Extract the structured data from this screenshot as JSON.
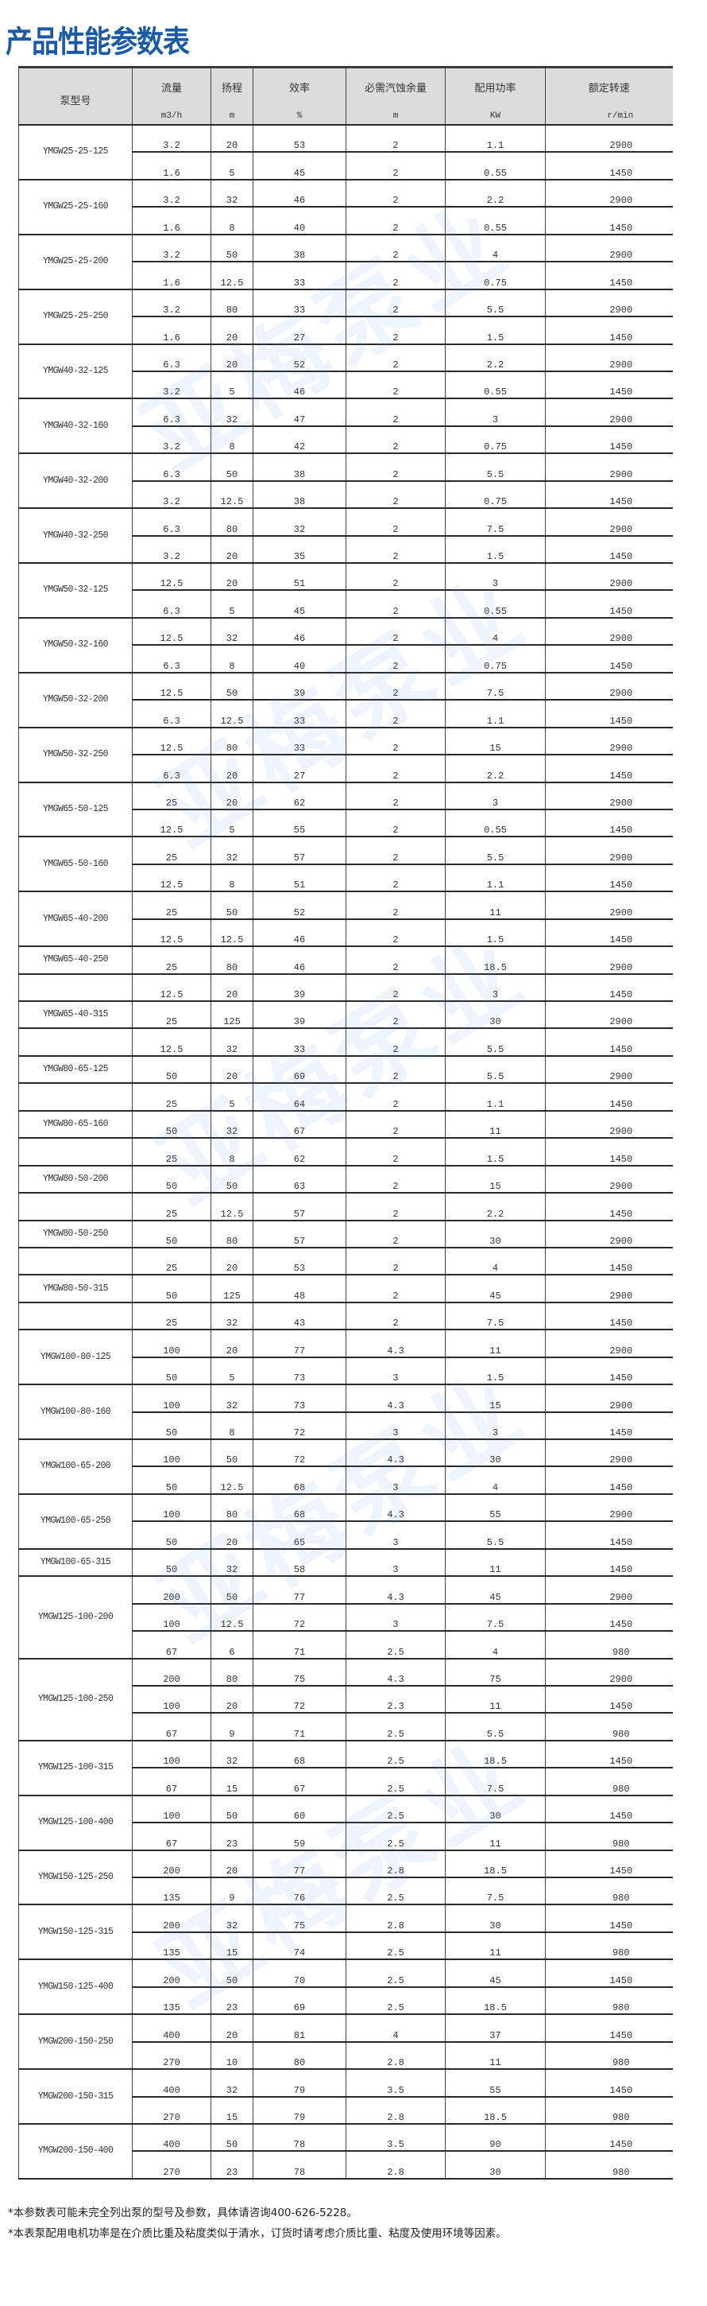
{
  "title": "产品性能参数表",
  "watermark": "亚梅泵业",
  "header": {
    "model": "泵型号",
    "columns": [
      {
        "label": "流量",
        "unit": "m3/h"
      },
      {
        "label": "扬程",
        "unit": "m"
      },
      {
        "label": "效率",
        "unit": "%"
      },
      {
        "label": "必需汽蚀余量",
        "unit": "m"
      },
      {
        "label": "配用功率",
        "unit": "KW"
      },
      {
        "label": "额定转速",
        "unit": "r/min"
      }
    ]
  },
  "groups": [
    {
      "model": "YMGW25-25-125",
      "merged": true,
      "rows": [
        [
          "3.2",
          "20",
          "53",
          "2",
          "1.1",
          "2900"
        ],
        [
          "1.6",
          "5",
          "45",
          "2",
          "0.55",
          "1450"
        ]
      ]
    },
    {
      "model": "YMGW25-25-160",
      "merged": true,
      "rows": [
        [
          "3.2",
          "32",
          "46",
          "2",
          "2.2",
          "2900"
        ],
        [
          "1.6",
          "8",
          "40",
          "2",
          "0.55",
          "1450"
        ]
      ]
    },
    {
      "model": "YMGW25-25-200",
      "merged": true,
      "rows": [
        [
          "3.2",
          "50",
          "38",
          "2",
          "4",
          "2900"
        ],
        [
          "1.6",
          "12.5",
          "33",
          "2",
          "0.75",
          "1450"
        ]
      ]
    },
    {
      "model": "YMGW25-25-250",
      "merged": true,
      "rows": [
        [
          "3.2",
          "80",
          "33",
          "2",
          "5.5",
          "2900"
        ],
        [
          "1.6",
          "20",
          "27",
          "2",
          "1.5",
          "1450"
        ]
      ]
    },
    {
      "model": "YMGW40-32-125",
      "merged": true,
      "rows": [
        [
          "6.3",
          "20",
          "52",
          "2",
          "2.2",
          "2900"
        ],
        [
          "3.2",
          "5",
          "46",
          "2",
          "0.55",
          "1450"
        ]
      ]
    },
    {
      "model": "YMGW40-32-160",
      "merged": true,
      "rows": [
        [
          "6.3",
          "32",
          "47",
          "2",
          "3",
          "2900"
        ],
        [
          "3.2",
          "8",
          "42",
          "2",
          "0.75",
          "1450"
        ]
      ]
    },
    {
      "model": "YMGW40-32-200",
      "merged": true,
      "rows": [
        [
          "6.3",
          "50",
          "38",
          "2",
          "5.5",
          "2900"
        ],
        [
          "3.2",
          "12.5",
          "38",
          "2",
          "0.75",
          "1450"
        ]
      ]
    },
    {
      "model": "YMGW40-32-250",
      "merged": true,
      "rows": [
        [
          "6.3",
          "80",
          "32",
          "2",
          "7.5",
          "2900"
        ],
        [
          "3.2",
          "20",
          "35",
          "2",
          "1.5",
          "1450"
        ]
      ]
    },
    {
      "model": "YMGW50-32-125",
      "merged": true,
      "rows": [
        [
          "12.5",
          "20",
          "51",
          "2",
          "3",
          "2900"
        ],
        [
          "6.3",
          "5",
          "45",
          "2",
          "0.55",
          "1450"
        ]
      ]
    },
    {
      "model": "YMGW50-32-160",
      "merged": true,
      "rows": [
        [
          "12.5",
          "32",
          "46",
          "2",
          "4",
          "2900"
        ],
        [
          "6.3",
          "8",
          "40",
          "2",
          "0.75",
          "1450"
        ]
      ]
    },
    {
      "model": "YMGW50-32-200",
      "merged": true,
      "rows": [
        [
          "12.5",
          "50",
          "39",
          "2",
          "7.5",
          "2900"
        ],
        [
          "6.3",
          "12.5",
          "33",
          "2",
          "1.1",
          "1450"
        ]
      ]
    },
    {
      "model": "YMGW50-32-250",
      "merged": true,
      "rows": [
        [
          "12.5",
          "80",
          "33",
          "2",
          "15",
          "2900"
        ],
        [
          "6.3",
          "20",
          "27",
          "2",
          "2.2",
          "1450"
        ]
      ]
    },
    {
      "model": "YMGW65-50-125",
      "merged": true,
      "rows": [
        [
          "25",
          "20",
          "62",
          "2",
          "3",
          "2900"
        ],
        [
          "12.5",
          "5",
          "55",
          "2",
          "0.55",
          "1450"
        ]
      ]
    },
    {
      "model": "YMGW65-50-160",
      "merged": true,
      "rows": [
        [
          "25",
          "32",
          "57",
          "2",
          "5.5",
          "2900"
        ],
        [
          "12.5",
          "8",
          "51",
          "2",
          "1.1",
          "1450"
        ]
      ]
    },
    {
      "model": "YMGW65-40-200",
      "merged": true,
      "rows": [
        [
          "25",
          "50",
          "52",
          "2",
          "11",
          "2900"
        ],
        [
          "12.5",
          "12.5",
          "46",
          "2",
          "1.5",
          "1450"
        ]
      ]
    },
    {
      "model": "YMGW65-40-250",
      "merged": false,
      "rows": [
        [
          "25",
          "80",
          "46",
          "2",
          "18.5",
          "2900"
        ],
        [
          "12.5",
          "20",
          "39",
          "2",
          "3",
          "1450"
        ]
      ]
    },
    {
      "model": "YMGW65-40-315",
      "merged": false,
      "rows": [
        [
          "25",
          "125",
          "39",
          "2",
          "30",
          "2900"
        ],
        [
          "12.5",
          "32",
          "33",
          "2",
          "5.5",
          "1450"
        ]
      ]
    },
    {
      "model": "YMGW80-65-125",
      "merged": false,
      "rows": [
        [
          "50",
          "20",
          "69",
          "2",
          "5.5",
          "2900"
        ],
        [
          "25",
          "5",
          "64",
          "2",
          "1.1",
          "1450"
        ]
      ]
    },
    {
      "model": "YMGW80-65-160",
      "merged": false,
      "rows": [
        [
          "50",
          "32",
          "67",
          "2",
          "11",
          "2900"
        ],
        [
          "25",
          "8",
          "62",
          "2",
          "1.5",
          "1450"
        ]
      ]
    },
    {
      "model": "YMGW80-50-200",
      "merged": false,
      "rows": [
        [
          "50",
          "50",
          "63",
          "2",
          "15",
          "2900"
        ],
        [
          "25",
          "12.5",
          "57",
          "2",
          "2.2",
          "1450"
        ]
      ]
    },
    {
      "model": "YMGW80-50-250",
      "merged": false,
      "rows": [
        [
          "50",
          "80",
          "57",
          "2",
          "30",
          "2900"
        ],
        [
          "25",
          "20",
          "53",
          "2",
          "4",
          "1450"
        ]
      ]
    },
    {
      "model": "YMGW80-50-315",
      "merged": false,
      "rows": [
        [
          "50",
          "125",
          "48",
          "2",
          "45",
          "2900"
        ],
        [
          "25",
          "32",
          "43",
          "2",
          "7.5",
          "1450"
        ]
      ]
    },
    {
      "model": "YMGW100-80-125",
      "merged": true,
      "rows": [
        [
          "100",
          "20",
          "77",
          "4.3",
          "11",
          "2900"
        ],
        [
          "50",
          "5",
          "73",
          "3",
          "1.5",
          "1450"
        ]
      ]
    },
    {
      "model": "YMGW100-80-160",
      "merged": true,
      "rows": [
        [
          "100",
          "32",
          "73",
          "4.3",
          "15",
          "2900"
        ],
        [
          "50",
          "8",
          "72",
          "3",
          "3",
          "1450"
        ]
      ]
    },
    {
      "model": "YMGW100-65-200",
      "merged": true,
      "rows": [
        [
          "100",
          "50",
          "72",
          "4.3",
          "30",
          "2900"
        ],
        [
          "50",
          "12.5",
          "68",
          "3",
          "4",
          "1450"
        ]
      ]
    },
    {
      "model": "YMGW100-65-250",
      "merged": true,
      "rows": [
        [
          "100",
          "80",
          "68",
          "4.3",
          "55",
          "2900"
        ],
        [
          "50",
          "20",
          "65",
          "3",
          "5.5",
          "1450"
        ]
      ]
    },
    {
      "model": "YMGW100-65-315",
      "merged": true,
      "rows": [
        [
          "50",
          "32",
          "58",
          "3",
          "11",
          "1450"
        ]
      ]
    },
    {
      "model": "YMGW125-100-200",
      "merged": true,
      "rows": [
        [
          "200",
          "50",
          "77",
          "4.3",
          "45",
          "2900"
        ],
        [
          "100",
          "12.5",
          "72",
          "3",
          "7.5",
          "1450"
        ],
        [
          "67",
          "6",
          "71",
          "2.5",
          "4",
          "980"
        ]
      ]
    },
    {
      "model": "YMGW125-100-250",
      "merged": true,
      "rows": [
        [
          "200",
          "80",
          "75",
          "4.3",
          "75",
          "2900"
        ],
        [
          "100",
          "20",
          "72",
          "2.3",
          "11",
          "1450"
        ],
        [
          "67",
          "9",
          "71",
          "2.5",
          "5.5",
          "980"
        ]
      ]
    },
    {
      "model": "YMGW125-100-315",
      "merged": true,
      "rows": [
        [
          "100",
          "32",
          "68",
          "2.5",
          "18.5",
          "1450"
        ],
        [
          "67",
          "15",
          "67",
          "2.5",
          "7.5",
          "980"
        ]
      ]
    },
    {
      "model": "YMGW125-100-400",
      "merged": true,
      "rows": [
        [
          "100",
          "50",
          "60",
          "2.5",
          "30",
          "1450"
        ],
        [
          "67",
          "23",
          "59",
          "2.5",
          "11",
          "980"
        ]
      ]
    },
    {
      "model": "YMGW150-125-250",
      "merged": true,
      "rows": [
        [
          "200",
          "20",
          "77",
          "2.8",
          "18.5",
          "1450"
        ],
        [
          "135",
          "9",
          "76",
          "2.5",
          "7.5",
          "980"
        ]
      ]
    },
    {
      "model": "YMGW150-125-315",
      "merged": true,
      "rows": [
        [
          "200",
          "32",
          "75",
          "2.8",
          "30",
          "1450"
        ],
        [
          "135",
          "15",
          "74",
          "2.5",
          "11",
          "980"
        ]
      ]
    },
    {
      "model": "YMGW150-125-400",
      "merged": true,
      "rows": [
        [
          "200",
          "50",
          "70",
          "2.5",
          "45",
          "1450"
        ],
        [
          "135",
          "23",
          "69",
          "2.5",
          "18.5",
          "980"
        ]
      ]
    },
    {
      "model": "YMGW200-150-250",
      "merged": true,
      "rows": [
        [
          "400",
          "20",
          "81",
          "4",
          "37",
          "1450"
        ],
        [
          "270",
          "10",
          "80",
          "2.8",
          "11",
          "980"
        ]
      ]
    },
    {
      "model": "YMGW200-150-315",
      "merged": true,
      "rows": [
        [
          "400",
          "32",
          "79",
          "3.5",
          "55",
          "1450"
        ],
        [
          "270",
          "15",
          "79",
          "2.8",
          "18.5",
          "980"
        ]
      ]
    },
    {
      "model": "YMGW200-150-400",
      "merged": true,
      "rows": [
        [
          "400",
          "50",
          "78",
          "3.5",
          "90",
          "1450"
        ],
        [
          "270",
          "23",
          "78",
          "2.8",
          "30",
          "980"
        ]
      ]
    }
  ],
  "notes": [
    "*本参数表可能未完全列出泵的型号及参数，具体请咨询400-626-5228。",
    "*本表泵配用电机功率是在介质比重及粘度类似于清水，订货时请考虑介质比重、粘度及使用环境等因素。"
  ],
  "colors": {
    "title": "#1a5aa6",
    "header_bg": "#dcdcdc",
    "watermark": "#3c82e6"
  }
}
